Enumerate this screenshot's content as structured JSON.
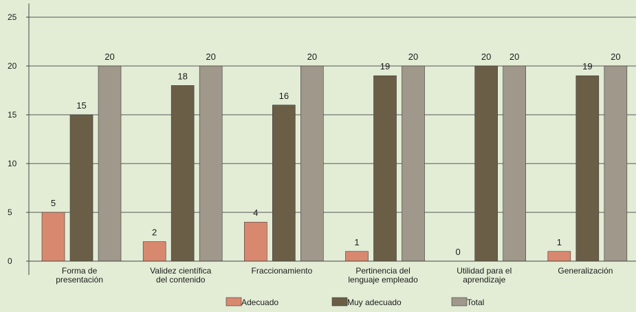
{
  "colors": {
    "background": "#E3EDD6",
    "adecuado": "#D98870",
    "muy_adecuado": "#6B5E47",
    "total": "#A0988A",
    "axis": "#444444",
    "grid": "#555555"
  },
  "chart_data": {
    "type": "bar",
    "title": "",
    "xlabel": "",
    "ylabel": "",
    "ylim": [
      0,
      25
    ],
    "yticks": [
      0,
      5,
      10,
      15,
      20,
      25
    ],
    "grid": true,
    "legend_position": "bottom",
    "categories": [
      [
        "Forma de",
        "presentación"
      ],
      [
        "Validez científica",
        "del contenido"
      ],
      [
        "Fraccionamiento"
      ],
      [
        "Pertinencia del",
        "lenguaje empleado"
      ],
      [
        "Utilidad para el",
        "aprendizaje"
      ],
      [
        "Generalización"
      ]
    ],
    "series": [
      {
        "name": "Adecuado",
        "color": "#D98870",
        "values": [
          5,
          2,
          4,
          1,
          0,
          1
        ]
      },
      {
        "name": "Muy adecuado",
        "color": "#6B5E47",
        "values": [
          15,
          18,
          16,
          19,
          20,
          19
        ]
      },
      {
        "name": "Total",
        "color": "#A0988A",
        "values": [
          20,
          20,
          20,
          20,
          20,
          20
        ]
      }
    ]
  }
}
